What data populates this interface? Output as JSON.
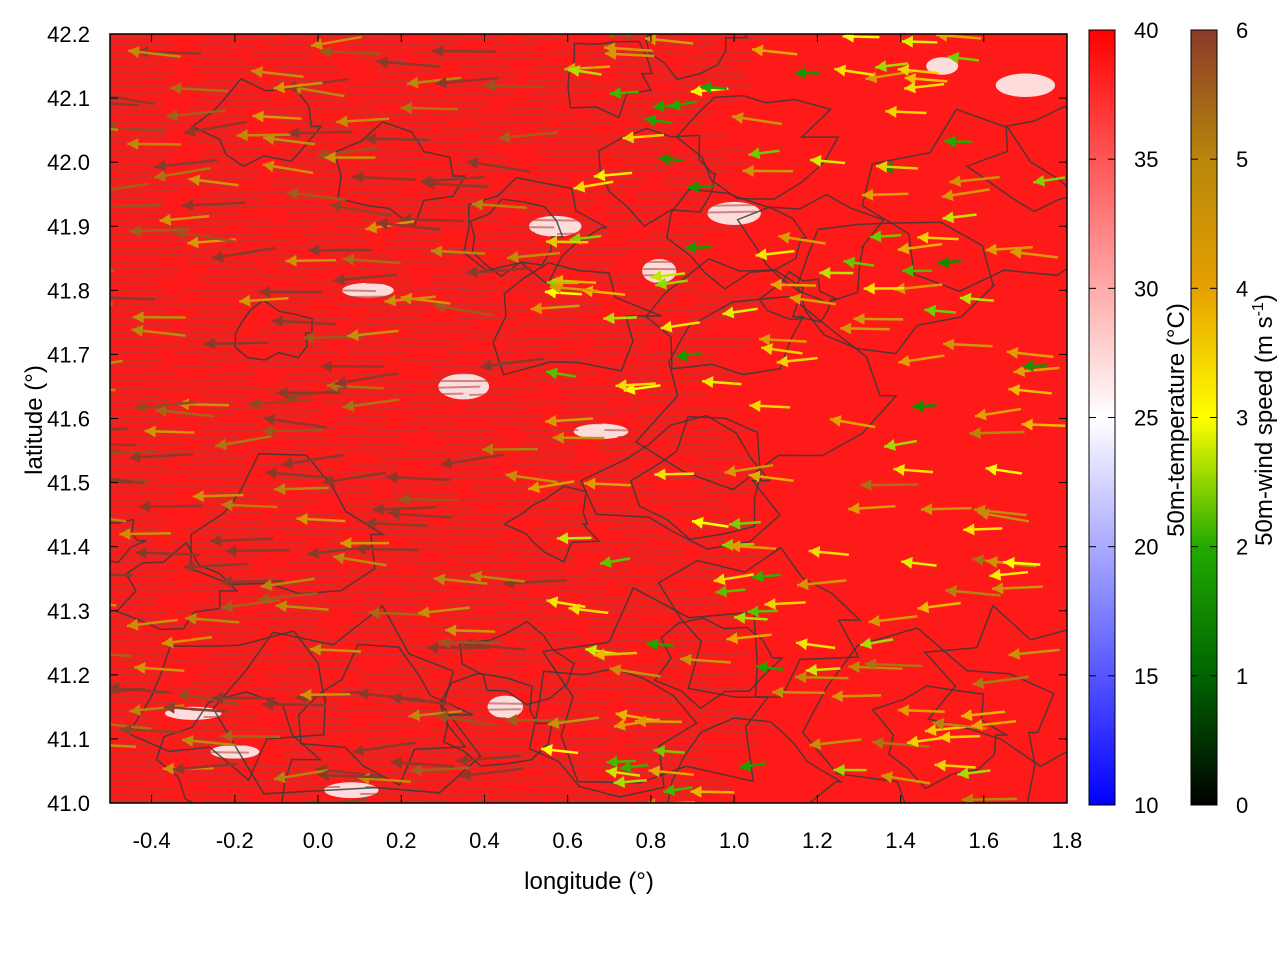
{
  "chart_data": {
    "type": "heatmap",
    "title": "",
    "xlabel": "longitude (°)",
    "ylabel": "latitude (°)",
    "xlim": [
      -0.5,
      1.8
    ],
    "ylim": [
      41.0,
      42.2
    ],
    "x_ticks": [
      "-0.4",
      "-0.2",
      "0.0",
      "0.2",
      "0.4",
      "0.6",
      "0.8",
      "1.0",
      "1.2",
      "1.4",
      "1.6",
      "1.8"
    ],
    "x_tick_values": [
      -0.4,
      -0.2,
      0.0,
      0.2,
      0.4,
      0.6,
      0.8,
      1.0,
      1.2,
      1.4,
      1.6,
      1.8
    ],
    "y_ticks": [
      "41.0",
      "41.1",
      "41.2",
      "41.3",
      "41.4",
      "41.5",
      "41.6",
      "41.7",
      "41.8",
      "41.9",
      "42.0",
      "42.1",
      "42.2"
    ],
    "y_tick_values": [
      41.0,
      41.1,
      41.2,
      41.3,
      41.4,
      41.5,
      41.6,
      41.7,
      41.8,
      41.9,
      42.0,
      42.1,
      42.2
    ],
    "grid": false,
    "background_field": {
      "name": "50m-temperature",
      "colorbar_label": "50m-temperature (°C)",
      "range": [
        10,
        40
      ],
      "ticks": [
        "10",
        "15",
        "20",
        "25",
        "30",
        "35",
        "40"
      ],
      "tick_values": [
        10,
        15,
        20,
        25,
        30,
        35,
        40
      ],
      "colormap": [
        "#0000ff",
        "#ffffff",
        "#ff0000"
      ],
      "dominant_color": "#ff1a1a",
      "mostly_saturated": true
    },
    "vector_field": {
      "name": "50m-wind",
      "colorbar_label": "50m-wind speed (m s",
      "colorbar_label_exponent": "-1",
      "colorbar_label_suffix": ")",
      "range": [
        0,
        6
      ],
      "ticks": [
        "0",
        "1",
        "2",
        "3",
        "4",
        "5",
        "6"
      ],
      "tick_values": [
        0,
        1,
        2,
        3,
        4,
        5,
        6
      ],
      "colormap": [
        "#000000",
        "#006400",
        "#22aa00",
        "#ffff00",
        "#e6a000",
        "#b8860b",
        "#8b3a2a"
      ],
      "prevailing_direction": "westward",
      "speed_by_region": [
        {
          "lon": [
            -0.5,
            0.6
          ],
          "lat": [
            41.0,
            42.2
          ],
          "speed": 5.8
        },
        {
          "lon": [
            0.6,
            1.2
          ],
          "lat": [
            41.0,
            41.6
          ],
          "speed": 3.2
        },
        {
          "lon": [
            1.2,
            1.8
          ],
          "lat": [
            41.0,
            41.6
          ],
          "speed": 4.0
        },
        {
          "lon": [
            0.6,
            1.8
          ],
          "lat": [
            41.6,
            42.2
          ],
          "speed": 3.0
        }
      ]
    },
    "contours": {
      "color": "#3a3a3a",
      "description_levels": "terrain isolines"
    }
  }
}
